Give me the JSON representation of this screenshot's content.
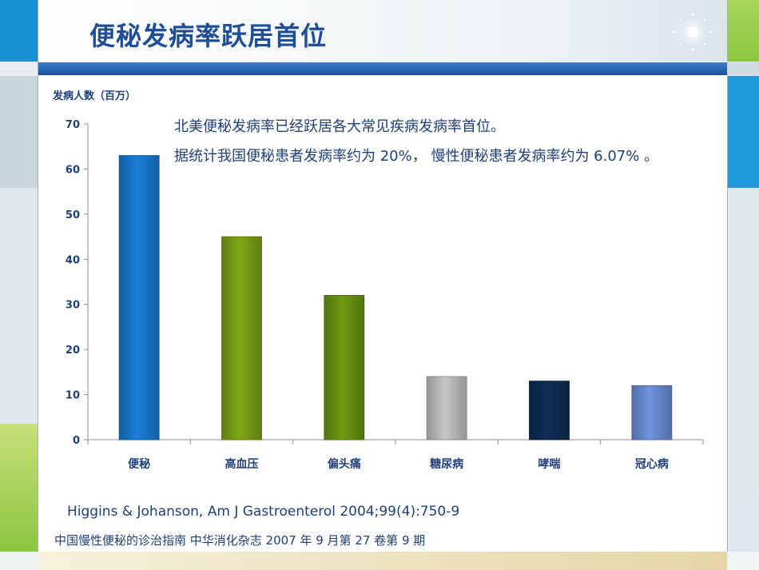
{
  "slide": {
    "title": "便秘发病率跃居首位",
    "description_line1": "北美便秘发病率已经跃居各大常见疾病发病率首位。",
    "description_line2": "据统计我国便秘患者发病率约为 20%， 慢性便秘患者发病率约为 6.07% 。",
    "reference1": "Higgins & Johanson, Am J Gastroenterol 2004;99(4):750-9",
    "reference2": "中国慢性便秘的诊治指南  中华消化杂志  2007 年 9 月第 27 卷第 9 期"
  },
  "chart_data": {
    "type": "bar",
    "title": "",
    "ylabel": "发病人数（百万）",
    "xlabel": "",
    "categories": [
      "便秘",
      "高血压",
      "偏头痛",
      "糖尿病",
      "哮喘",
      "冠心病"
    ],
    "values": [
      63,
      45,
      32,
      14,
      13,
      12
    ],
    "ylim": [
      0,
      70
    ],
    "yticks": [
      0,
      10,
      20,
      30,
      40,
      50,
      60,
      70
    ],
    "bar_colors": [
      "#1a7fd8",
      "#7fa818",
      "#6e9a12",
      "#c6c6c6",
      "#0f2d57",
      "#6f93dc"
    ],
    "grid": false
  }
}
